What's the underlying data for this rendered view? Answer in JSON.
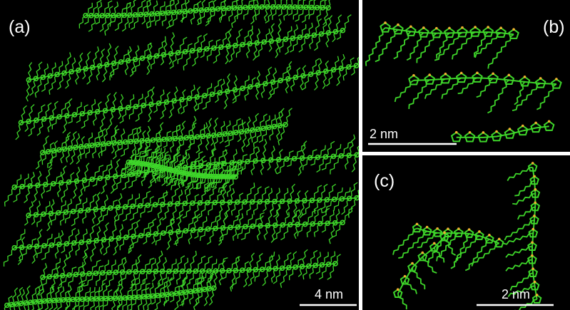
{
  "panels": [
    {
      "label": "(a)",
      "scale_bar": "4 nm"
    },
    {
      "label": "(b)",
      "scale_bar": "2 nm"
    },
    {
      "label": "(c)",
      "scale_bar": "2 nm"
    }
  ]
}
